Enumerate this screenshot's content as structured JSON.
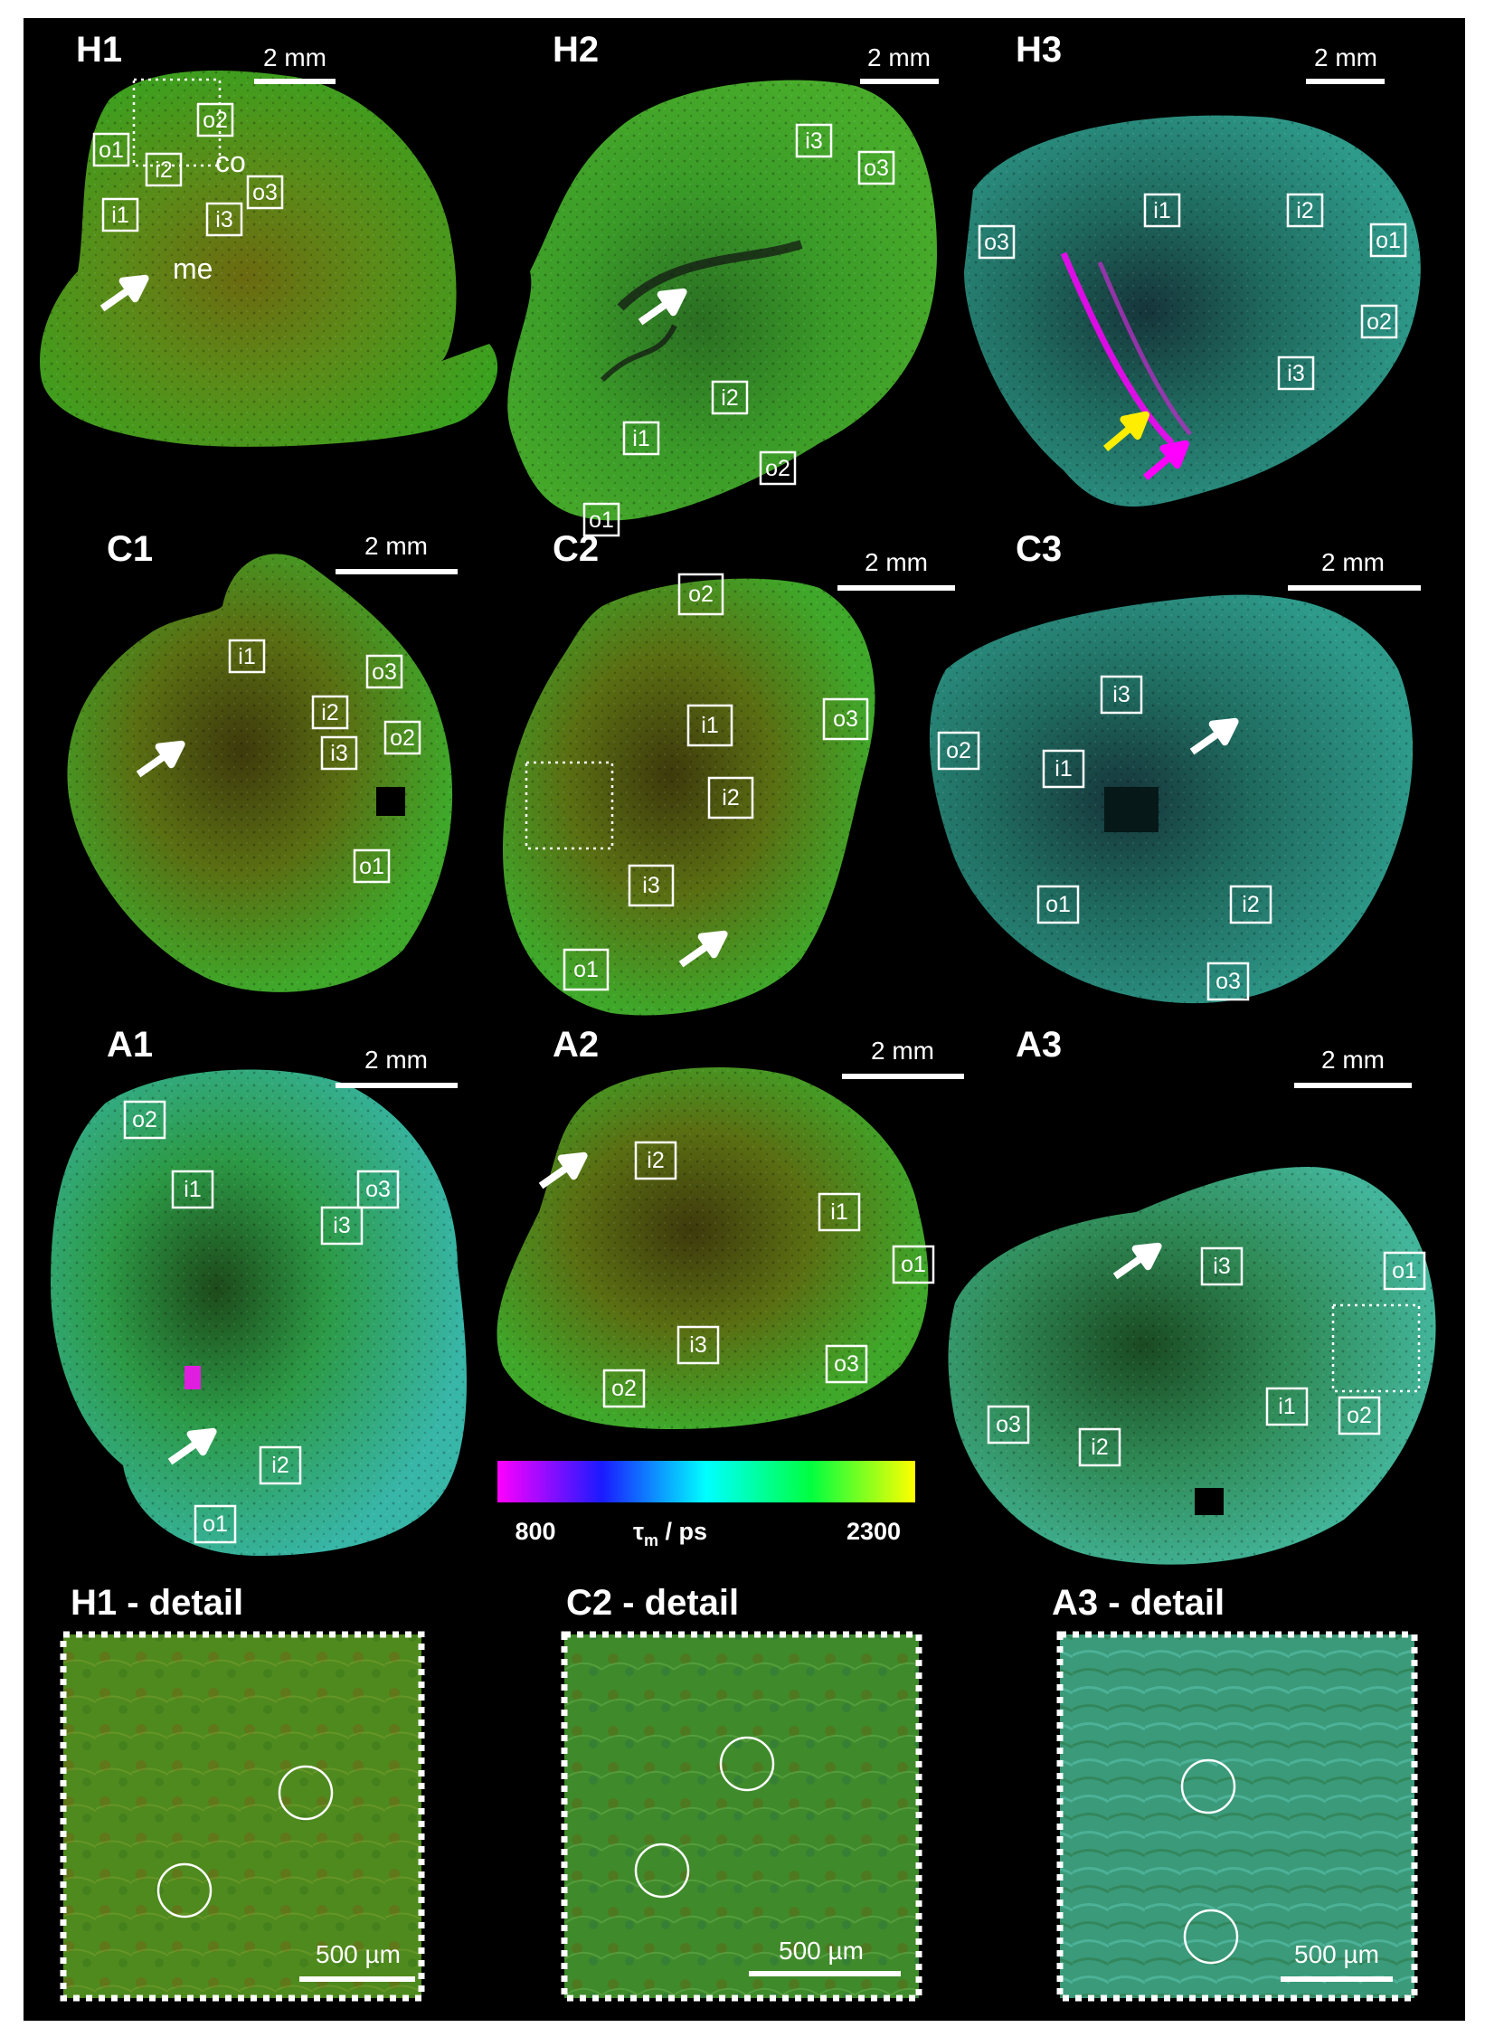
{
  "panels": {
    "H1": {
      "label": "H1",
      "scale": "2 mm",
      "annot_co": "co",
      "annot_me": "me",
      "rois": [
        "o1",
        "o2",
        "i2",
        "i1",
        "i3",
        "o3"
      ]
    },
    "H2": {
      "label": "H2",
      "scale": "2 mm",
      "rois": [
        "i3",
        "o3",
        "i2",
        "i1",
        "o2",
        "o1"
      ]
    },
    "H3": {
      "label": "H3",
      "scale": "2 mm",
      "rois": [
        "i1",
        "i2",
        "o3",
        "o1",
        "o2",
        "i3"
      ]
    },
    "C1": {
      "label": "C1",
      "scale": "2 mm",
      "rois": [
        "i1",
        "o3",
        "i2",
        "o2",
        "i3",
        "o1"
      ]
    },
    "C2": {
      "label": "C2",
      "scale": "2 mm",
      "rois": [
        "o2",
        "i1",
        "o3",
        "i2",
        "i3",
        "o1"
      ]
    },
    "C3": {
      "label": "C3",
      "scale": "2 mm",
      "rois": [
        "i3",
        "o2",
        "i1",
        "o1",
        "i2",
        "o3"
      ]
    },
    "A1": {
      "label": "A1",
      "scale": "2 mm",
      "rois": [
        "o2",
        "i1",
        "o3",
        "i3",
        "i2",
        "o1"
      ]
    },
    "A2": {
      "label": "A2",
      "scale": "2 mm",
      "rois": [
        "i2",
        "i1",
        "o1",
        "i3",
        "o3",
        "o2"
      ]
    },
    "A3": {
      "label": "A3",
      "scale": "2 mm",
      "rois": [
        "i3",
        "o1",
        "i1",
        "o2",
        "o3",
        "i2"
      ]
    }
  },
  "colorbar": {
    "min_label": "800",
    "max_label": "2300",
    "quantity": "τ",
    "quantity_sub": "m",
    "unit": " / ps",
    "min_value": 800,
    "max_value": 2300,
    "stops": [
      "#ff00ff",
      "#1a1aff",
      "#00ffff",
      "#00ff40",
      "#ffff00"
    ]
  },
  "details": [
    {
      "title": "H1 - detail",
      "scale": "500 µm"
    },
    {
      "title": "C2 - detail",
      "scale": "500 µm"
    },
    {
      "title": "A3 - detail",
      "scale": "500 µm"
    }
  ],
  "arrow_colors": {
    "white": "#ffffff",
    "yellow": "#ffee00",
    "magenta": "#ff00ff"
  }
}
